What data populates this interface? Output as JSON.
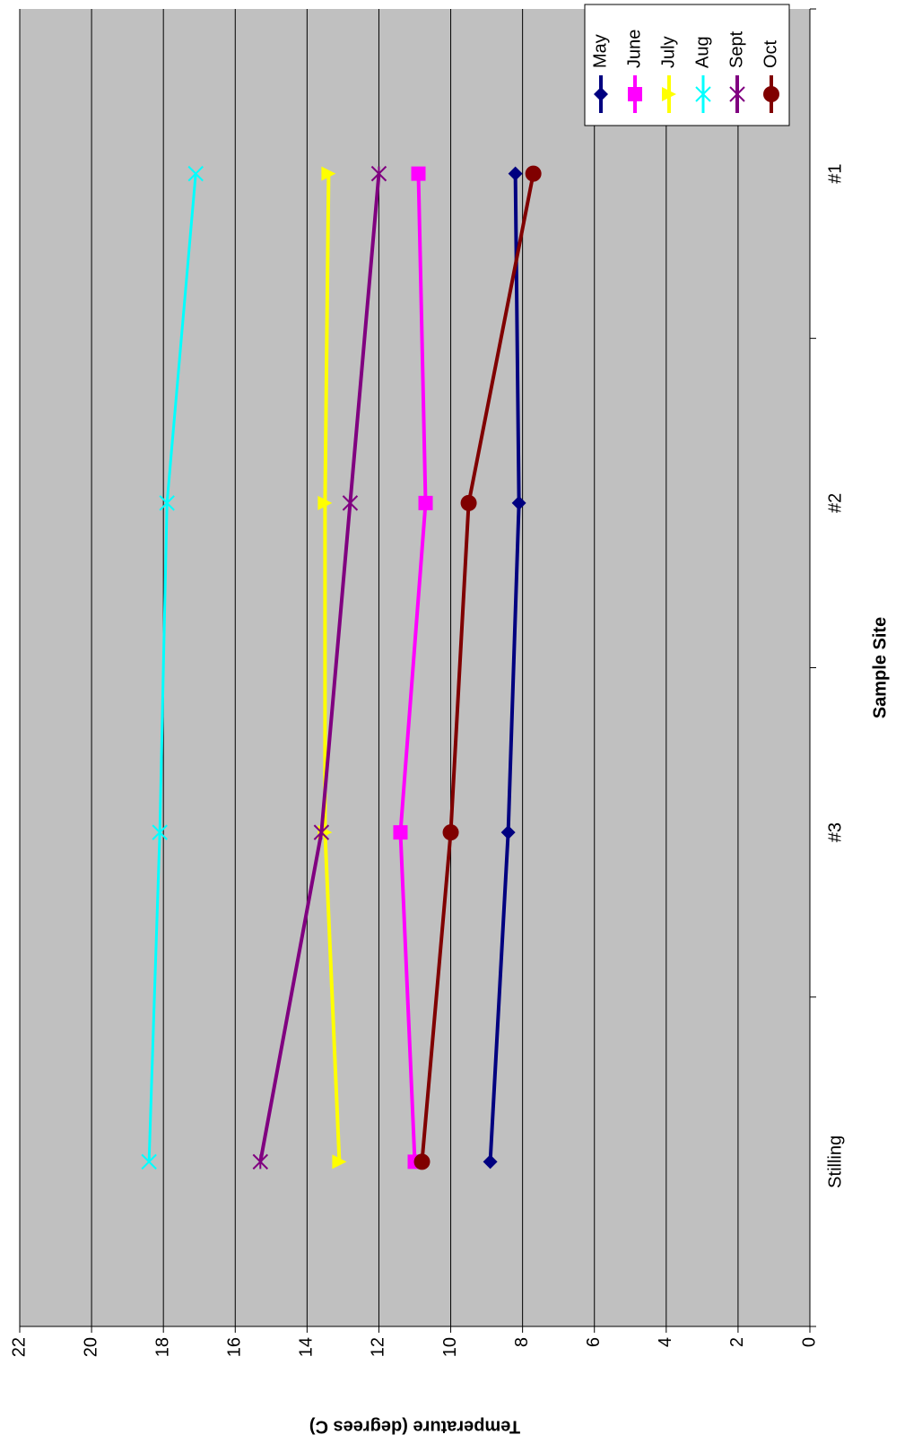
{
  "chart_data": {
    "type": "line",
    "orientation": "rotated-90",
    "categories": [
      "Stilling",
      "#3",
      "#2",
      "#1"
    ],
    "xlabel": "Sample Site",
    "ylabel": "Temperature (degrees C)",
    "ylim": [
      0,
      22
    ],
    "yticks": [
      0,
      2,
      4,
      6,
      8,
      10,
      12,
      14,
      16,
      18,
      20,
      22
    ],
    "grid": true,
    "legend_position": "top-right",
    "plot_background": "#c0c0c0",
    "series": [
      {
        "name": "May",
        "color": "#000080",
        "marker": "diamond",
        "values": [
          8.9,
          8.4,
          8.1,
          8.2
        ]
      },
      {
        "name": "June",
        "color": "#ff00ff",
        "marker": "square",
        "values": [
          11.0,
          11.4,
          10.7,
          10.9
        ]
      },
      {
        "name": "July",
        "color": "#ffff00",
        "marker": "triangle",
        "values": [
          13.1,
          13.5,
          13.5,
          13.4
        ]
      },
      {
        "name": "Aug",
        "color": "#00ffff",
        "marker": "x",
        "values": [
          18.4,
          18.1,
          17.9,
          17.1
        ]
      },
      {
        "name": "Sept",
        "color": "#800080",
        "marker": "asterisk",
        "values": [
          15.3,
          13.6,
          12.8,
          12.0
        ]
      },
      {
        "name": "Oct",
        "color": "#800000",
        "marker": "circle",
        "values": [
          10.8,
          10.0,
          9.5,
          7.7
        ]
      }
    ]
  }
}
